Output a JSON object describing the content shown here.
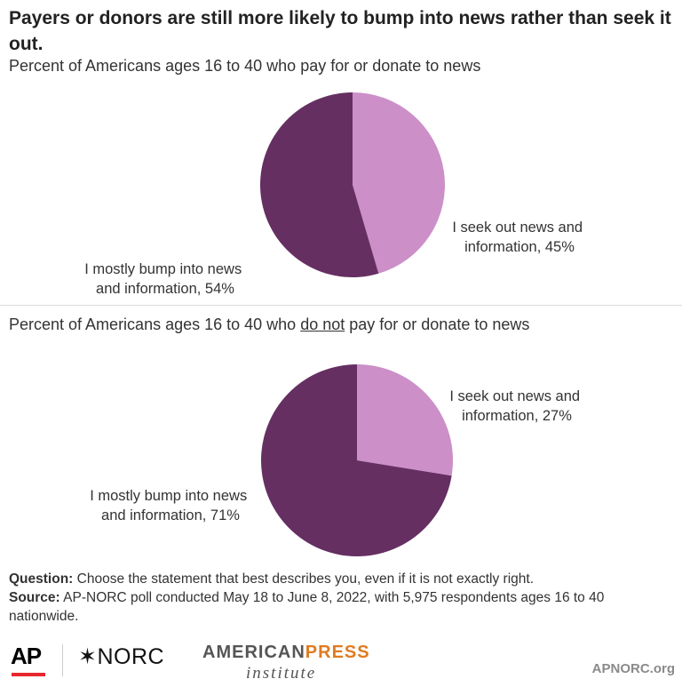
{
  "title": "Payers or donors are still more likely to bump into news rather than seek it out.",
  "chart_data": [
    {
      "type": "pie",
      "title": "Percent of Americans ages 16 to 40 who pay for or donate to news",
      "slices": [
        {
          "label_line1": "I seek out news and",
          "label_line2": "information, 45%",
          "value": 45,
          "color": "#cc8fc8"
        },
        {
          "label_line1": "I mostly bump into news",
          "label_line2": "and information, 54%",
          "value": 54,
          "color": "#652f62"
        }
      ]
    },
    {
      "type": "pie",
      "title_prefix": "Percent of Americans ages 16 to 40 who ",
      "title_emphasis": "do not",
      "title_suffix": " pay for or donate to news",
      "slices": [
        {
          "label_line1": "I seek out news and",
          "label_line2": "information, 27%",
          "value": 27,
          "color": "#cc8fc8"
        },
        {
          "label_line1": "I mostly bump into news",
          "label_line2": "and information, 71%",
          "value": 71,
          "color": "#652f62"
        }
      ]
    }
  ],
  "footer": {
    "question_label": "Question:",
    "question_text": " Choose the statement that best describes you, even if it is not exactly right.",
    "source_label": "Source:",
    "source_text": " AP-NORC poll conducted May 18 to June 8, 2022, with 5,975 respondents ages 16 to 40 nationwide."
  },
  "logos": {
    "ap": "AP",
    "norc": "✶NORC",
    "api_part1": "AMERICAN",
    "api_part2": "PRESS",
    "api_part3": "institute",
    "site": "APNORC.org"
  }
}
